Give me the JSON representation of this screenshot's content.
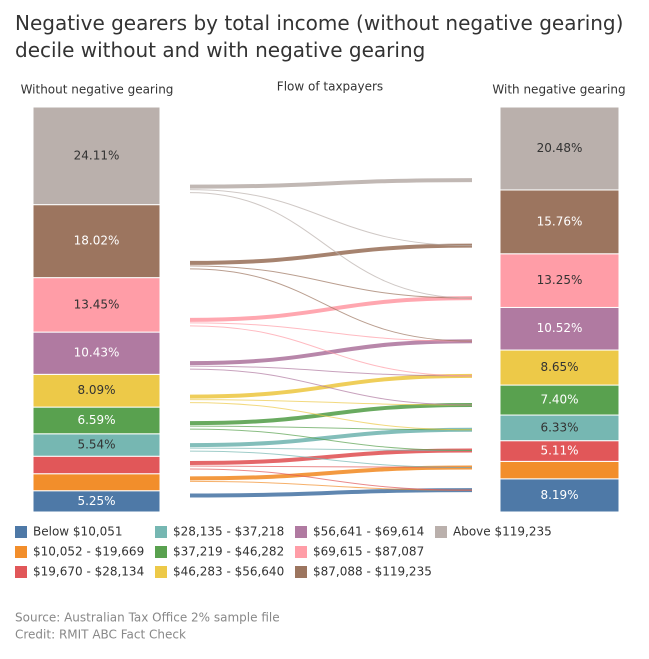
{
  "chart_data": {
    "type": "stacked-bar",
    "title": "Negative gearers by total income (without negative gearing) decile without and with negative gearing",
    "categories": [
      "Without negative gearing",
      "With negative gearing"
    ],
    "flow_title": "Flow of taxpayers",
    "series": [
      {
        "name": "Below $10,051",
        "color": "#4e79a7",
        "values": [
          5.25,
          8.19
        ],
        "value_labels": [
          "5.25%",
          "8.19%"
        ]
      },
      {
        "name": "$10,052 - $19,669",
        "color": "#f28e2b",
        "values": [
          4.2,
          4.31
        ],
        "value_labels": [
          null,
          null
        ]
      },
      {
        "name": "$19,670 - $28,134",
        "color": "#e15759",
        "values": [
          4.32,
          5.11
        ],
        "value_labels": [
          null,
          "5.11%"
        ]
      },
      {
        "name": "$28,135 - $37,218",
        "color": "#76b7b2",
        "values": [
          5.54,
          6.33
        ],
        "value_labels": [
          "5.54%",
          "6.33%"
        ]
      },
      {
        "name": "$37,219 - $46,282",
        "color": "#59a14f",
        "values": [
          6.59,
          7.4
        ],
        "value_labels": [
          "6.59%",
          "7.40%"
        ]
      },
      {
        "name": "$46,283 - $56,640",
        "color": "#edc948",
        "values": [
          8.09,
          8.65
        ],
        "value_labels": [
          "8.09%",
          "8.65%"
        ]
      },
      {
        "name": "$56,641 - $69,614",
        "color": "#b07aa1",
        "values": [
          10.43,
          10.52
        ],
        "value_labels": [
          "10.43%",
          "10.52%"
        ]
      },
      {
        "name": "$69,615 - $87,087",
        "color": "#ff9da7",
        "values": [
          13.45,
          13.25
        ],
        "value_labels": [
          "13.45%",
          "13.25%"
        ]
      },
      {
        "name": "$87,088 - $119,235",
        "color": "#9c755f",
        "values": [
          18.02,
          15.76
        ],
        "value_labels": [
          "18.02%",
          "15.76%"
        ]
      },
      {
        "name": "Above $119,235",
        "color": "#bab0ac",
        "values": [
          24.11,
          20.48
        ],
        "value_labels": [
          "24.11%",
          "20.48%"
        ]
      }
    ],
    "ylim": [
      0,
      100
    ],
    "notes": [
      "Source: Australian Tax Office 2% sample file",
      "Credit: RMIT ABC Fact Check"
    ]
  }
}
